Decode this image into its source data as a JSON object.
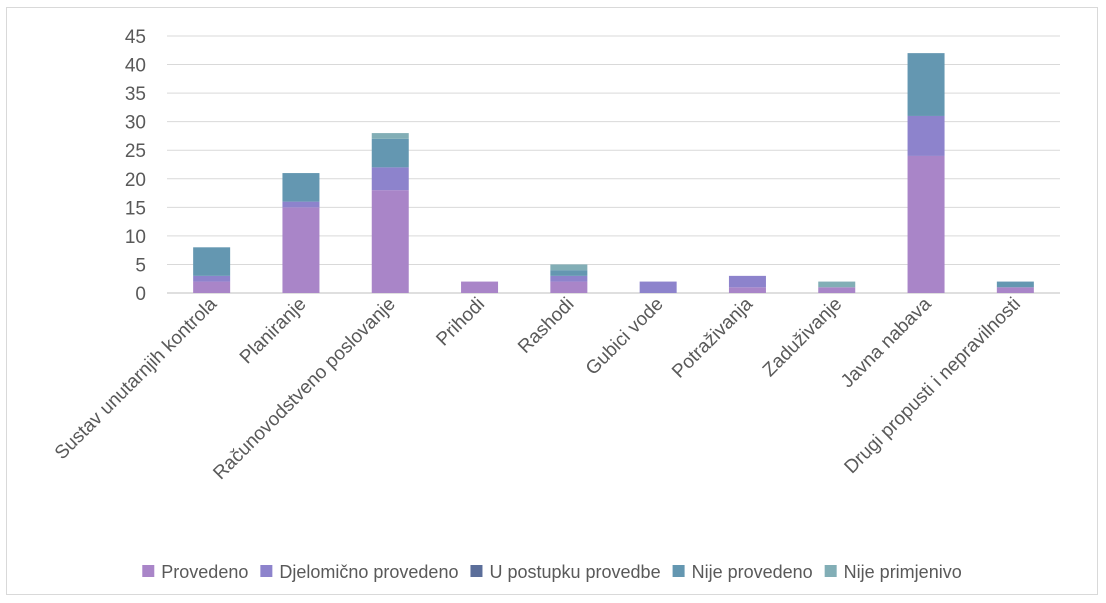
{
  "chart_data": {
    "type": "bar",
    "stacked": true,
    "categories": [
      "Sustav unutarnjih kontrola",
      "Planiranje",
      "Računovodstveno poslovanje",
      "Prihodi",
      "Rashodi",
      "Gubici vode",
      "Potraživanja",
      "Zaduživanje",
      "Javna nabava",
      "Drugi propusti i nepravilnosti"
    ],
    "series": [
      {
        "name": "Provedeno",
        "color": "#A985C8",
        "values": [
          2,
          15,
          18,
          2,
          2,
          0,
          1,
          1,
          24,
          1
        ]
      },
      {
        "name": "Djelomično provedeno",
        "color": "#8D83CC",
        "values": [
          1,
          1,
          4,
          0,
          1,
          2,
          2,
          0,
          7,
          0
        ]
      },
      {
        "name": "U postupku provedbe",
        "color": "#5B6E9A",
        "values": [
          0,
          0,
          0,
          0,
          0,
          0,
          0,
          0,
          0,
          0
        ]
      },
      {
        "name": "Nije provedeno",
        "color": "#6497B1",
        "values": [
          5,
          5,
          5,
          0,
          1,
          0,
          0,
          0,
          11,
          1
        ]
      },
      {
        "name": "Nije primjenivo",
        "color": "#82AEB6",
        "values": [
          0,
          0,
          1,
          0,
          1,
          0,
          0,
          1,
          0,
          0
        ]
      }
    ],
    "ylim": [
      0,
      45
    ],
    "yticks": [
      0,
      5,
      10,
      15,
      20,
      25,
      30,
      35,
      40,
      45
    ],
    "grid": true,
    "legend": "bottom",
    "title": "",
    "xlabel": "",
    "ylabel": ""
  }
}
